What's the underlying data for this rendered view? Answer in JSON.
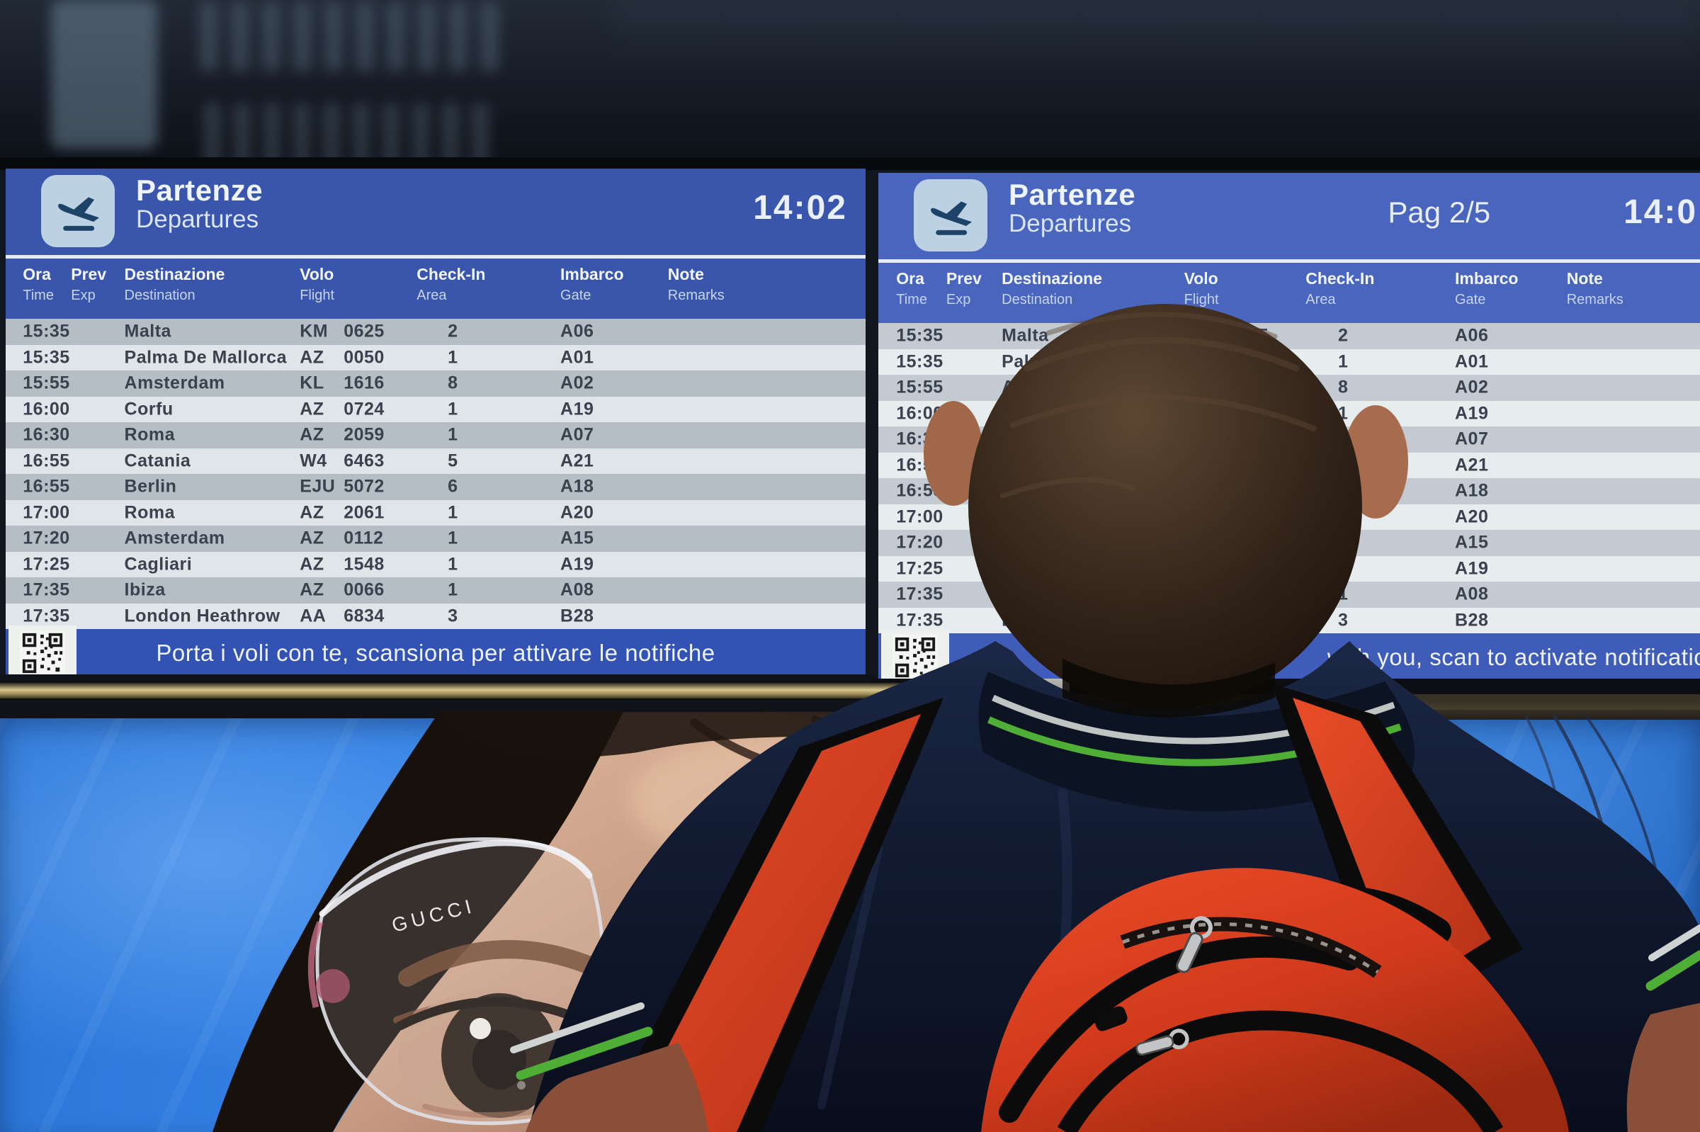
{
  "left_board": {
    "title_it": "Partenze",
    "title_en": "Departures",
    "time": "14:02",
    "footer_text": "Porta i voli con te, scansiona per attivare le notifiche"
  },
  "right_board": {
    "title_it": "Partenze",
    "title_en": "Departures",
    "page": "Pag 2/5",
    "time": "14:0",
    "footer_text": "with you, scan to activate notifications"
  },
  "columns": [
    {
      "it": "Ora",
      "en": "Time"
    },
    {
      "it": "Prev",
      "en": "Exp"
    },
    {
      "it": "Destinazione",
      "en": "Destination"
    },
    {
      "it": "Volo",
      "en": "Flight"
    },
    {
      "it": "Check-In",
      "en": "Area"
    },
    {
      "it": "Imbarco",
      "en": "Gate"
    },
    {
      "it": "Note",
      "en": "Remarks"
    }
  ],
  "flights": [
    {
      "time": "15:35",
      "prev": "",
      "destination": "Malta",
      "airline": "KM",
      "number": "0625",
      "checkin": "2",
      "gate": "A06",
      "remarks": ""
    },
    {
      "time": "15:35",
      "prev": "",
      "destination": "Palma De Mallorca",
      "airline": "AZ",
      "number": "0050",
      "checkin": "1",
      "gate": "A01",
      "remarks": ""
    },
    {
      "time": "15:55",
      "prev": "",
      "destination": "Amsterdam",
      "airline": "KL",
      "number": "1616",
      "checkin": "8",
      "gate": "A02",
      "remarks": ""
    },
    {
      "time": "16:00",
      "prev": "",
      "destination": "Corfu",
      "airline": "AZ",
      "number": "0724",
      "checkin": "1",
      "gate": "A19",
      "remarks": ""
    },
    {
      "time": "16:30",
      "prev": "",
      "destination": "Roma",
      "airline": "AZ",
      "number": "2059",
      "checkin": "1",
      "gate": "A07",
      "remarks": ""
    },
    {
      "time": "16:55",
      "prev": "",
      "destination": "Catania",
      "airline": "W4",
      "number": "6463",
      "checkin": "5",
      "gate": "A21",
      "remarks": ""
    },
    {
      "time": "16:55",
      "prev": "",
      "destination": "Berlin",
      "airline": "EJU",
      "number": "5072",
      "checkin": "6",
      "gate": "A18",
      "remarks": ""
    },
    {
      "time": "17:00",
      "prev": "",
      "destination": "Roma",
      "airline": "AZ",
      "number": "2061",
      "checkin": "1",
      "gate": "A20",
      "remarks": ""
    },
    {
      "time": "17:20",
      "prev": "",
      "destination": "Amsterdam",
      "airline": "AZ",
      "number": "0112",
      "checkin": "1",
      "gate": "A15",
      "remarks": ""
    },
    {
      "time": "17:25",
      "prev": "",
      "destination": "Cagliari",
      "airline": "AZ",
      "number": "1548",
      "checkin": "1",
      "gate": "A19",
      "remarks": ""
    },
    {
      "time": "17:35",
      "prev": "",
      "destination": "Ibiza",
      "airline": "AZ",
      "number": "0066",
      "checkin": "1",
      "gate": "A08",
      "remarks": ""
    },
    {
      "time": "17:35",
      "prev": "",
      "destination": "London Heathrow",
      "airline": "AA",
      "number": "6834",
      "checkin": "3",
      "gate": "B28",
      "remarks": ""
    }
  ],
  "ad": {
    "brand_text": "GUCCI"
  },
  "icons": {
    "board_icon": "airplane-departure-icon",
    "footer_icon": "qr-code-icon"
  },
  "colors": {
    "board_header_blue": "#3a55ac",
    "board_header_blue_right": "#4a65bd",
    "row_stripe_dark": "#b5bdc5",
    "row_stripe_light": "#dfe5e8",
    "footer_blue": "#3252b4",
    "ad_blue": "#2e7fe2",
    "backpack_red": "#d9411f",
    "polo_navy": "#0e1524",
    "collar_green": "#55b32d"
  }
}
